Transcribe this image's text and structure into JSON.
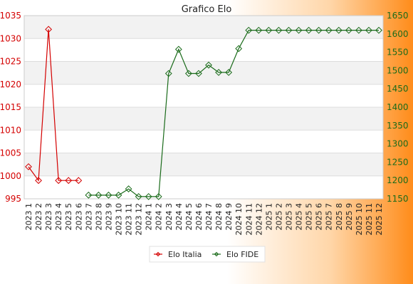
{
  "chart_data": {
    "type": "line",
    "title": "Grafico Elo",
    "categories": [
      "2023 1",
      "2023 2",
      "2023 3",
      "2023 4",
      "2023 5",
      "2023 6",
      "2023 7",
      "2023 8",
      "2023 9",
      "2023 10",
      "2023 11",
      "2023 12",
      "2024 1",
      "2024 2",
      "2024 3",
      "2024 4",
      "2024 5",
      "2024 6",
      "2024 7",
      "2024 8",
      "2024 9",
      "2024 10",
      "2024 11",
      "2024 12",
      "2025 1",
      "2025 2",
      "2025 3",
      "2025 4",
      "2025 5",
      "2025 6",
      "2025 7",
      "2025 8",
      "2025 9",
      "2025 10",
      "2025 11",
      "2025 12"
    ],
    "y_left": {
      "min": 995,
      "max": 1035,
      "ticks": [
        995,
        1000,
        1005,
        1010,
        1015,
        1020,
        1025,
        1030,
        1035
      ]
    },
    "y_right": {
      "min": 1150,
      "max": 1650,
      "ticks": [
        1150,
        1200,
        1250,
        1300,
        1350,
        1400,
        1450,
        1500,
        1550,
        1600,
        1650
      ]
    },
    "grid": true,
    "legend_position": "bottom",
    "series": [
      {
        "name": "Elo Italia",
        "axis": "left",
        "color": "#d40000",
        "values": [
          1002,
          999,
          1032,
          999,
          999,
          999,
          null,
          null,
          null,
          null,
          null,
          null,
          null,
          null,
          null,
          null,
          null,
          null,
          null,
          null,
          null,
          null,
          null,
          null,
          null,
          null,
          null,
          null,
          null,
          null,
          null,
          null,
          null,
          null,
          null,
          null
        ]
      },
      {
        "name": "Elo FIDE",
        "axis": "right",
        "color": "#1a6b1a",
        "values": [
          null,
          null,
          null,
          null,
          null,
          null,
          1160,
          1160,
          1160,
          1160,
          1177,
          1156,
          1156,
          1156,
          1492,
          1558,
          1492,
          1492,
          1515,
          1495,
          1495,
          1560,
          1610,
          1610,
          1610,
          1610,
          1610,
          1610,
          1610,
          1610,
          1610,
          1610,
          1610,
          1610,
          1610,
          1610
        ]
      }
    ]
  }
}
